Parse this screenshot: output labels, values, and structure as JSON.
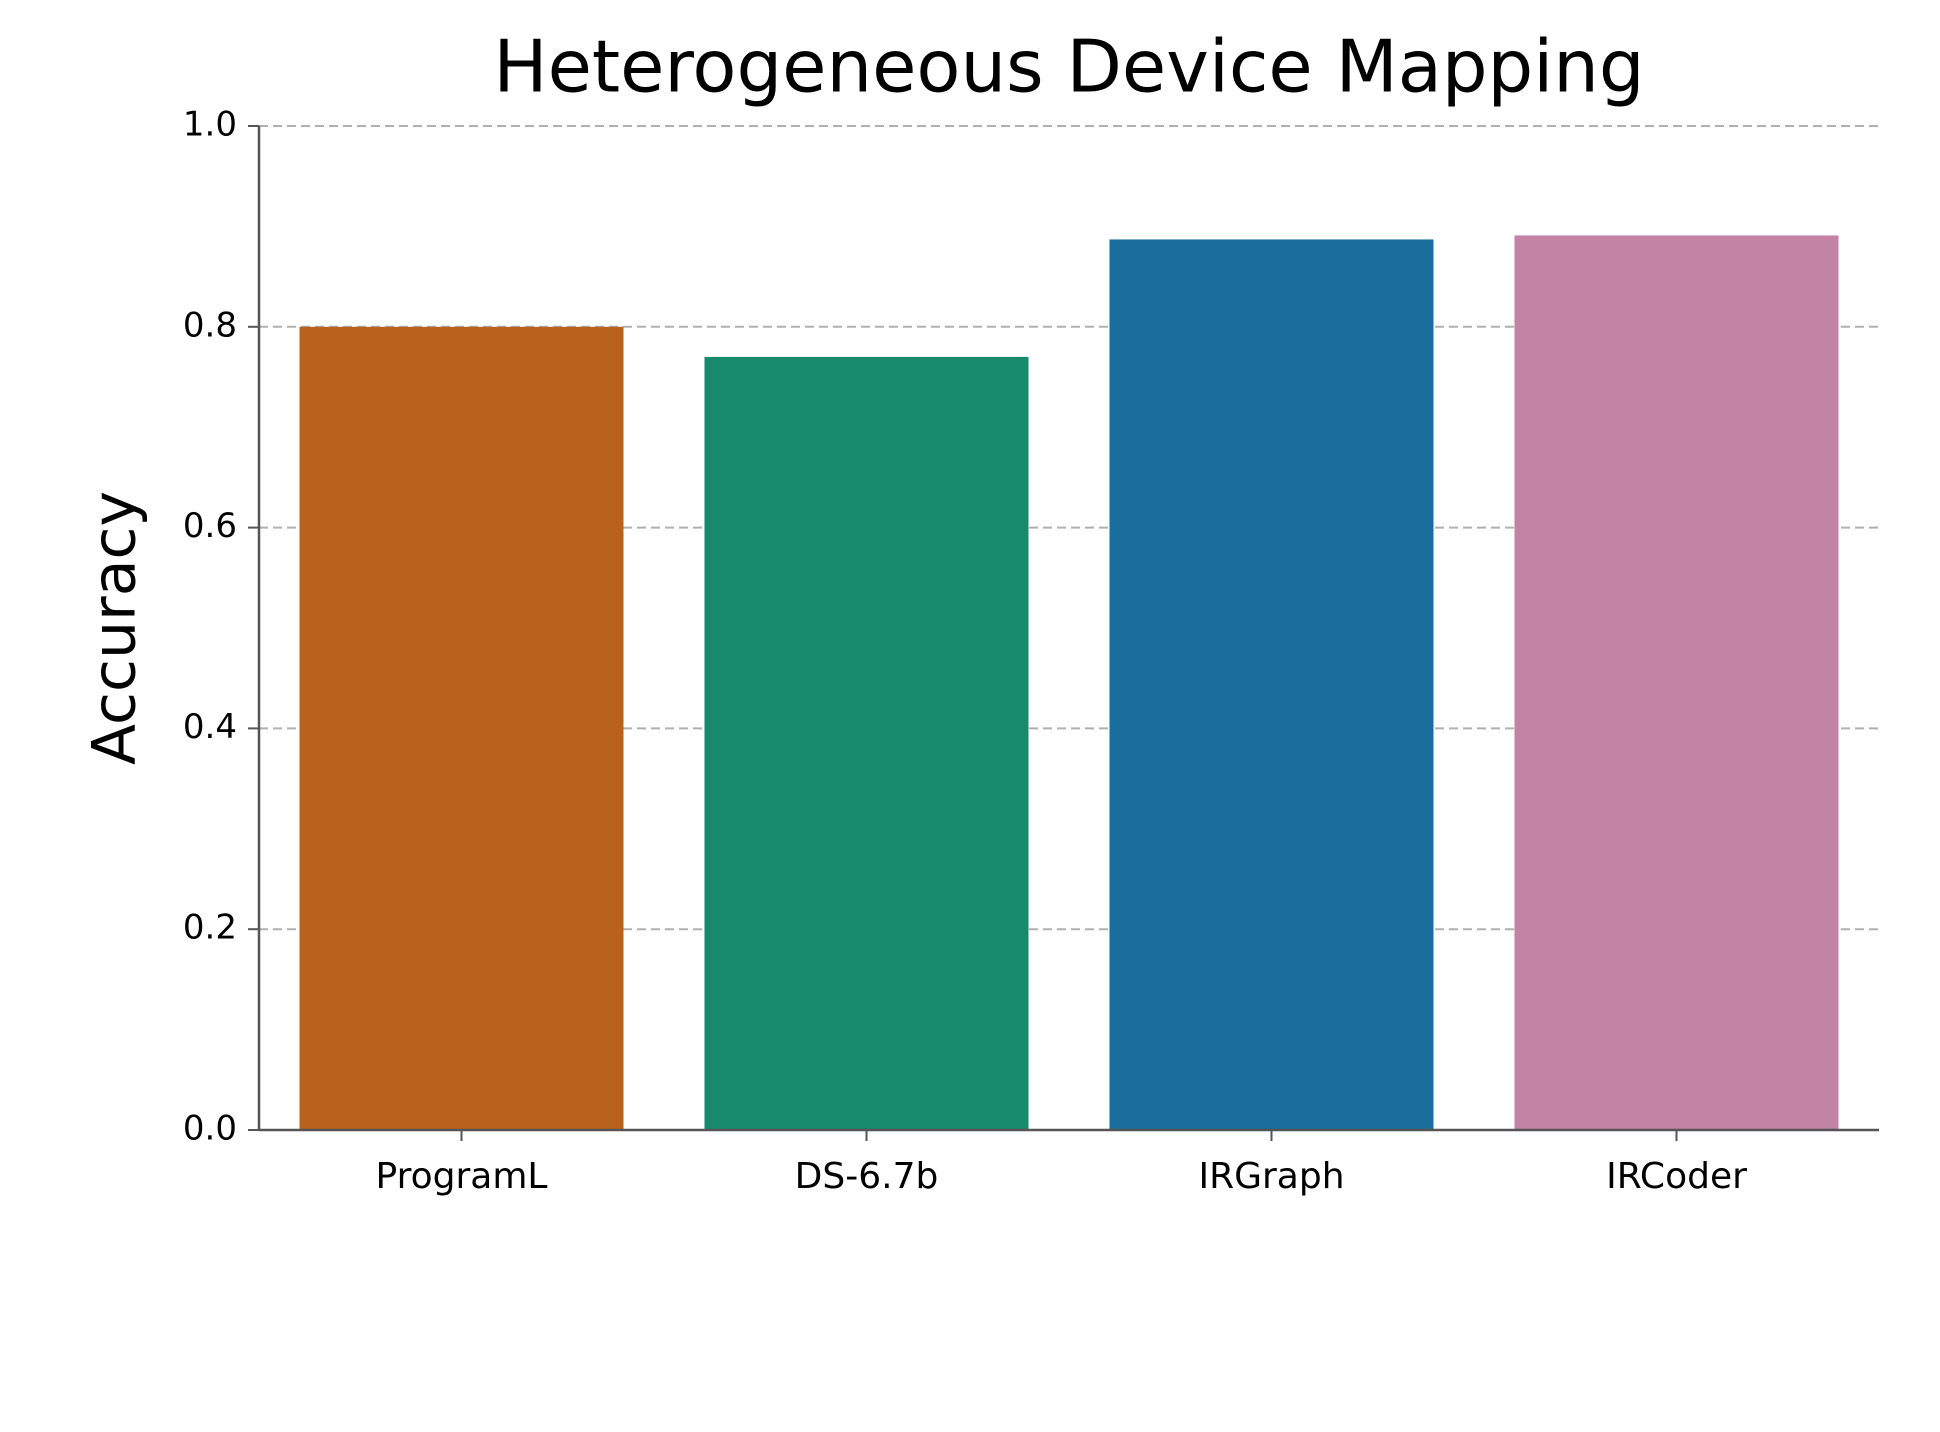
{
  "chart_data": {
    "type": "bar",
    "title": "Heterogeneous Device Mapping",
    "y_label": "Accuracy",
    "categories": [
      "ProgramL",
      "DS-6.7b",
      "IRGraph",
      "IRCoder"
    ],
    "values": [
      0.8,
      0.77,
      0.887,
      0.891
    ],
    "colors": [
      "#b8621d",
      "#178a6c",
      "#1a6c9c",
      "#c283a5"
    ],
    "ylim": [
      0,
      1
    ],
    "yticks": [
      {
        "value": 0,
        "label": "0.0"
      },
      0.2,
      0.4,
      0.6,
      0.8,
      {
        "value": 1,
        "label": "1.0"
      }
    ],
    "grid": true
  }
}
